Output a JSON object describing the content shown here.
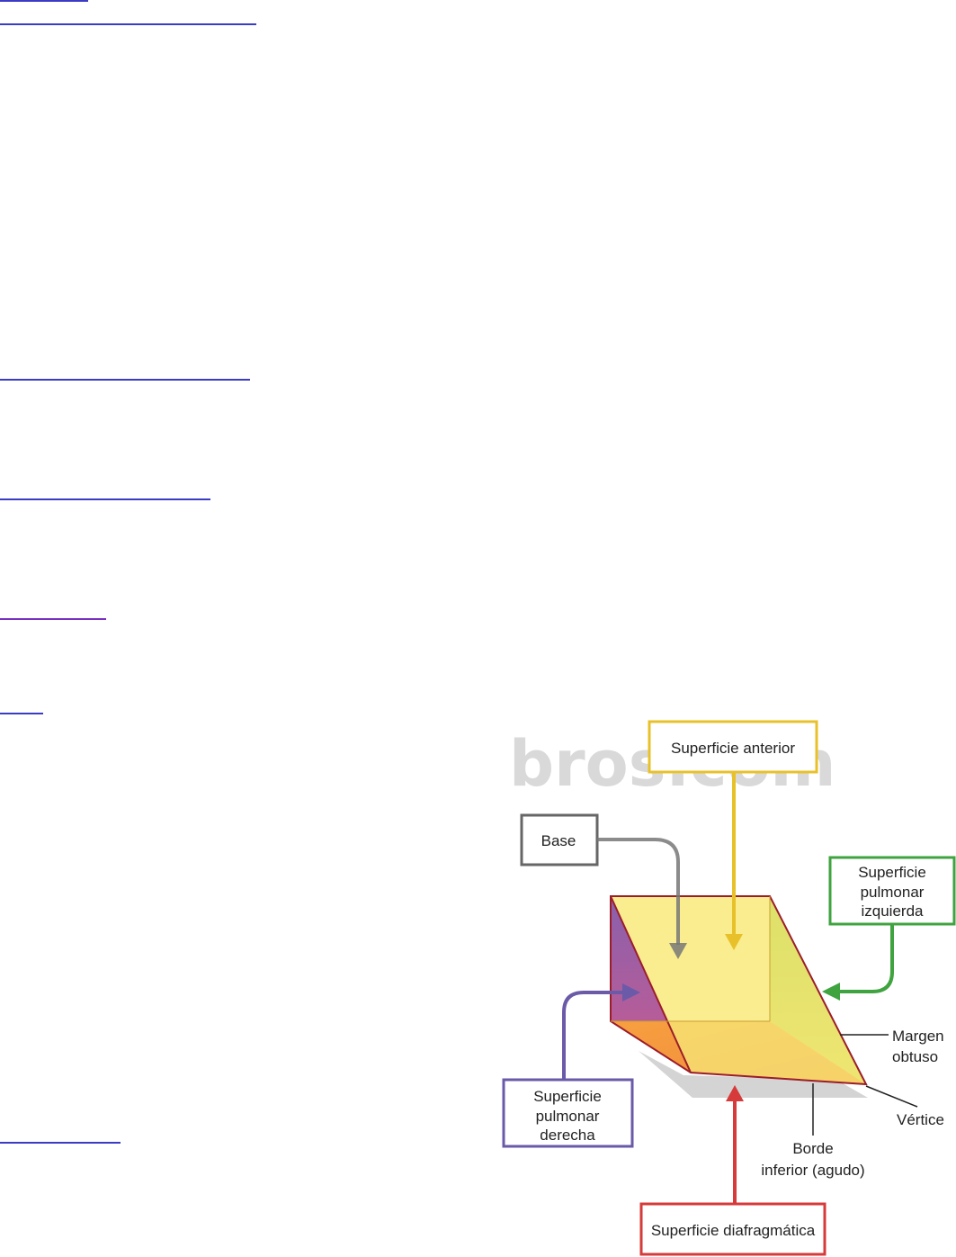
{
  "page": {
    "link_lines": [
      {
        "name": "link-underline-1",
        "color": "#3b3bc4"
      },
      {
        "name": "link-underline-2",
        "color": "#3b3bc4"
      },
      {
        "name": "link-underline-3",
        "color": "#3b3bc4"
      },
      {
        "name": "link-underline-4",
        "color": "#3b3bc4"
      },
      {
        "name": "link-underline-5",
        "color": "#7b2fbf"
      },
      {
        "name": "link-underline-6",
        "color": "#3b3bc4"
      },
      {
        "name": "link-underline-7",
        "color": "#3b3bc4"
      }
    ]
  },
  "diagram": {
    "watermark": "bros.com",
    "labels": {
      "anterior": "Superficie anterior",
      "base": "Base",
      "left_1": "Superficie",
      "left_2": "pulmonar",
      "left_3": "izquierda",
      "obtuse_1": "Margen",
      "obtuse_2": "obtuso",
      "right_1": "Superficie",
      "right_2": "pulmonar",
      "right_3": "derecha",
      "vertex": "Vértice",
      "border_1": "Borde",
      "border_2": "inferior (agudo)",
      "diaphragm": "Superficie diafragmática"
    },
    "colors": {
      "anterior": "#e8c12a",
      "base": "#666666",
      "left": "#3fa33f",
      "right": "#6a5aa8",
      "diaphragm": "#d63a3a",
      "outline": "#9b1d2a"
    }
  }
}
